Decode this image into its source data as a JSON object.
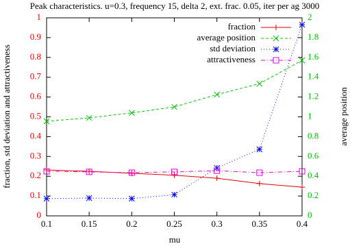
{
  "chart_data": {
    "type": "line",
    "title": "Peak characteristics. u=0.3, frequency 15, delta 2, ext. frac. 0.05, iter per ag 3000",
    "xlabel": "mu",
    "ylabel": "fraction, std deviation and attractiveness",
    "y2label": "average position",
    "x": [
      0.1,
      0.15,
      0.2,
      0.25,
      0.3,
      0.35,
      0.4
    ],
    "xlim": [
      0.1,
      0.4
    ],
    "xticks": [
      0.1,
      0.15,
      0.2,
      0.25,
      0.3,
      0.35,
      0.4
    ],
    "ylim": [
      0,
      1
    ],
    "yticks": [
      0,
      0.1,
      0.2,
      0.3,
      0.4,
      0.5,
      0.6,
      0.7,
      0.8,
      0.9,
      1
    ],
    "y2lim": [
      0,
      2
    ],
    "y2ticks": [
      0,
      0.2,
      0.4,
      0.6,
      0.8,
      1,
      1.2,
      1.4,
      1.6,
      1.8,
      2
    ],
    "ytick_color": "#e00000",
    "y2tick_color": "#00c000",
    "grid": false,
    "legend": "top-right",
    "series": [
      {
        "name": "fraction",
        "color": "#e00000",
        "marker": "plus",
        "line_style": "solid",
        "axis": "y",
        "values": [
          0.232,
          0.225,
          0.215,
          0.205,
          0.19,
          0.163,
          0.145
        ]
      },
      {
        "name": "average position",
        "color": "#00c000",
        "marker": "cross",
        "line_style": "dashed",
        "axis": "y2",
        "values": [
          0.955,
          0.99,
          1.04,
          1.1,
          1.225,
          1.335,
          1.57
        ]
      },
      {
        "name": "std deviation",
        "color": "#0000e0",
        "marker": "star",
        "line_style": "dotted",
        "axis": "y",
        "values": [
          0.087,
          0.09,
          0.087,
          0.107,
          0.242,
          0.336,
          0.965
        ]
      },
      {
        "name": "attractiveness",
        "color": "#e000e0",
        "marker": "square",
        "line_style": "dashdot",
        "axis": "y",
        "values": [
          0.225,
          0.222,
          0.218,
          0.222,
          0.228,
          0.218,
          0.225
        ]
      }
    ]
  }
}
